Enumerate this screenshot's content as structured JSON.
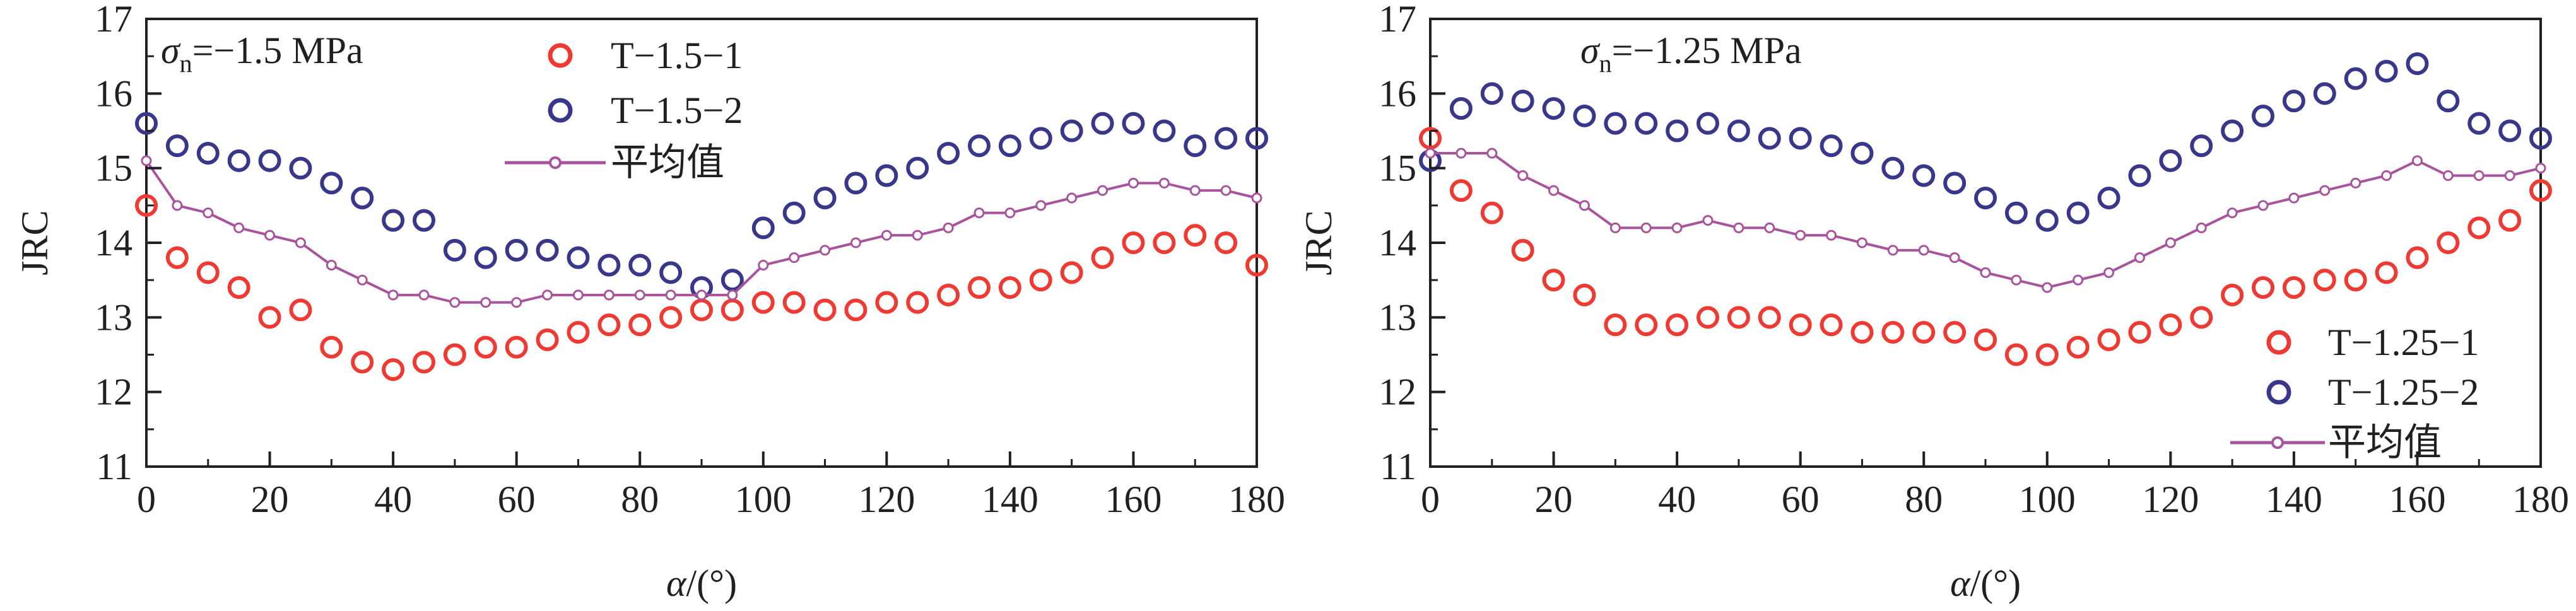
{
  "colors": {
    "red": "#ee3a33",
    "blue": "#39378a",
    "mean": "#a8539c",
    "axis": "#231f20"
  },
  "chart_data": [
    {
      "type": "scatter",
      "annotation": {
        "sym": "σ",
        "sub": "n",
        "rest": "=−1.5 MPa"
      },
      "xlabel": {
        "sym": "α",
        "rest": "/(°)"
      },
      "ylabel": "JRC",
      "xlim": [
        0,
        180
      ],
      "ylim": [
        11,
        17
      ],
      "xticks": [
        "0",
        "20",
        "40",
        "60",
        "80",
        "100",
        "120",
        "140",
        "160",
        "180"
      ],
      "yticks": [
        "11",
        "12",
        "13",
        "14",
        "15",
        "16",
        "17"
      ],
      "legend": {
        "placement": "top-center",
        "labels": [
          "T−1.5−1",
          "T−1.5−2",
          "平均值"
        ]
      },
      "series": [
        {
          "name": "T−1.5−1",
          "color": "red",
          "marker": "circle",
          "x": [
            0,
            5,
            10,
            15,
            20,
            25,
            30,
            35,
            40,
            45,
            50,
            55,
            60,
            65,
            70,
            75,
            80,
            85,
            90,
            95,
            100,
            105,
            110,
            115,
            120,
            125,
            130,
            135,
            140,
            145,
            150,
            155,
            160,
            165,
            170,
            175,
            180
          ],
          "y": [
            14.5,
            13.8,
            13.6,
            13.4,
            13.0,
            13.1,
            12.6,
            12.4,
            12.3,
            12.4,
            12.5,
            12.6,
            12.6,
            12.7,
            12.8,
            12.9,
            12.9,
            13.0,
            13.1,
            13.1,
            13.2,
            13.2,
            13.1,
            13.1,
            13.2,
            13.2,
            13.3,
            13.4,
            13.4,
            13.5,
            13.6,
            13.8,
            14.0,
            14.0,
            14.1,
            14.0,
            13.7
          ]
        },
        {
          "name": "T−1.5−2",
          "color": "blue",
          "marker": "circle",
          "x": [
            0,
            5,
            10,
            15,
            20,
            25,
            30,
            35,
            40,
            45,
            50,
            55,
            60,
            65,
            70,
            75,
            80,
            85,
            90,
            95,
            100,
            105,
            110,
            115,
            120,
            125,
            130,
            135,
            140,
            145,
            150,
            155,
            160,
            165,
            170,
            175,
            180
          ],
          "y": [
            15.6,
            15.3,
            15.2,
            15.1,
            15.1,
            15.0,
            14.8,
            14.6,
            14.3,
            14.3,
            13.9,
            13.8,
            13.9,
            13.9,
            13.8,
            13.7,
            13.7,
            13.6,
            13.4,
            13.5,
            14.2,
            14.4,
            14.6,
            14.8,
            14.9,
            15.0,
            15.2,
            15.3,
            15.3,
            15.4,
            15.5,
            15.6,
            15.6,
            15.5,
            15.3,
            15.4,
            15.4
          ]
        },
        {
          "name": "平均值",
          "color": "mean",
          "marker": "line-circle",
          "x": [
            0,
            5,
            10,
            15,
            20,
            25,
            30,
            35,
            40,
            45,
            50,
            55,
            60,
            65,
            70,
            75,
            80,
            85,
            90,
            95,
            100,
            105,
            110,
            115,
            120,
            125,
            130,
            135,
            140,
            145,
            150,
            155,
            160,
            165,
            170,
            175,
            180
          ],
          "y": [
            15.1,
            14.5,
            14.4,
            14.2,
            14.1,
            14.0,
            13.7,
            13.5,
            13.3,
            13.3,
            13.2,
            13.2,
            13.2,
            13.3,
            13.3,
            13.3,
            13.3,
            13.3,
            13.3,
            13.3,
            13.7,
            13.8,
            13.9,
            14.0,
            14.1,
            14.1,
            14.2,
            14.4,
            14.4,
            14.5,
            14.6,
            14.7,
            14.8,
            14.8,
            14.7,
            14.7,
            14.6
          ]
        }
      ]
    },
    {
      "type": "scatter",
      "annotation": {
        "sym": "σ",
        "sub": "n",
        "rest": "=−1.25 MPa"
      },
      "xlabel": {
        "sym": "α",
        "rest": "/(°)"
      },
      "ylabel": "JRC",
      "xlim": [
        0,
        180
      ],
      "ylim": [
        11,
        17
      ],
      "xticks": [
        "0",
        "20",
        "40",
        "60",
        "80",
        "100",
        "120",
        "140",
        "160",
        "180"
      ],
      "yticks": [
        "11",
        "12",
        "13",
        "14",
        "15",
        "16",
        "17"
      ],
      "legend": {
        "placement": "bottom-right",
        "labels": [
          "T−1.25−1",
          "T−1.25−2",
          "平均值"
        ]
      },
      "series": [
        {
          "name": "T−1.25−1",
          "color": "red",
          "marker": "circle",
          "x": [
            0,
            5,
            10,
            15,
            20,
            25,
            30,
            35,
            40,
            45,
            50,
            55,
            60,
            65,
            70,
            75,
            80,
            85,
            90,
            95,
            100,
            105,
            110,
            115,
            120,
            125,
            130,
            135,
            140,
            145,
            150,
            155,
            160,
            165,
            170,
            175,
            180
          ],
          "y": [
            15.4,
            14.7,
            14.4,
            13.9,
            13.5,
            13.3,
            12.9,
            12.9,
            12.9,
            13.0,
            13.0,
            13.0,
            12.9,
            12.9,
            12.8,
            12.8,
            12.8,
            12.8,
            12.7,
            12.5,
            12.5,
            12.6,
            12.7,
            12.8,
            12.9,
            13.0,
            13.3,
            13.4,
            13.4,
            13.5,
            13.5,
            13.6,
            13.8,
            14.0,
            14.2,
            14.3,
            14.7
          ]
        },
        {
          "name": "T−1.25−2",
          "color": "blue",
          "marker": "circle",
          "x": [
            0,
            5,
            10,
            15,
            20,
            25,
            30,
            35,
            40,
            45,
            50,
            55,
            60,
            65,
            70,
            75,
            80,
            85,
            90,
            95,
            100,
            105,
            110,
            115,
            120,
            125,
            130,
            135,
            140,
            145,
            150,
            155,
            160,
            165,
            170,
            175,
            180
          ],
          "y": [
            15.1,
            15.8,
            16.0,
            15.9,
            15.8,
            15.7,
            15.6,
            15.6,
            15.5,
            15.6,
            15.5,
            15.4,
            15.4,
            15.3,
            15.2,
            15.0,
            14.9,
            14.8,
            14.6,
            14.4,
            14.3,
            14.4,
            14.6,
            14.9,
            15.1,
            15.3,
            15.5,
            15.7,
            15.9,
            16.0,
            16.2,
            16.3,
            16.4,
            15.9,
            15.6,
            15.5,
            15.4
          ]
        },
        {
          "name": "平均值",
          "color": "mean",
          "marker": "line-circle",
          "x": [
            0,
            5,
            10,
            15,
            20,
            25,
            30,
            35,
            40,
            45,
            50,
            55,
            60,
            65,
            70,
            75,
            80,
            85,
            90,
            95,
            100,
            105,
            110,
            115,
            120,
            125,
            130,
            135,
            140,
            145,
            150,
            155,
            160,
            165,
            170,
            175,
            180
          ],
          "y": [
            15.2,
            15.2,
            15.2,
            14.9,
            14.7,
            14.5,
            14.2,
            14.2,
            14.2,
            14.3,
            14.2,
            14.2,
            14.1,
            14.1,
            14.0,
            13.9,
            13.9,
            13.8,
            13.6,
            13.5,
            13.4,
            13.5,
            13.6,
            13.8,
            14.0,
            14.2,
            14.4,
            14.5,
            14.6,
            14.7,
            14.8,
            14.9,
            15.1,
            14.9,
            14.9,
            14.9,
            15.0
          ]
        }
      ]
    }
  ]
}
